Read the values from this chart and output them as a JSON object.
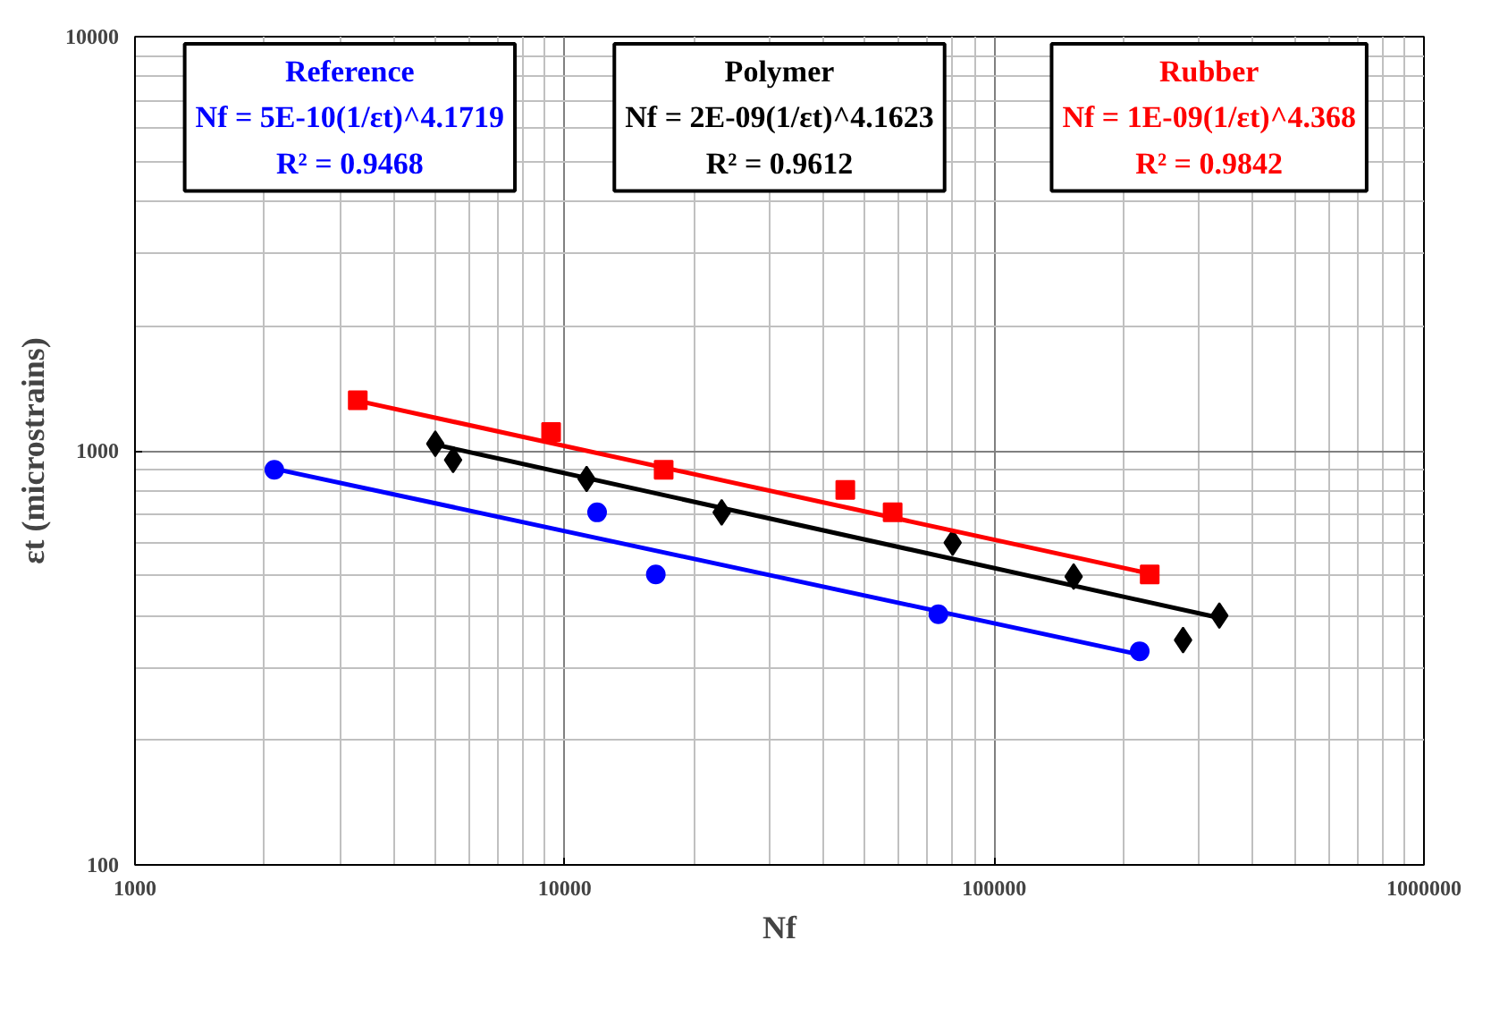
{
  "chart_data": {
    "type": "scatter",
    "xlabel": "Nf",
    "ylabel": "εt (microstrains)",
    "log": "xy",
    "grid": true,
    "xlim": [
      1000,
      1000000
    ],
    "xticks": [
      1000,
      10000,
      100000,
      1000000
    ],
    "ylim": [
      100,
      10000
    ],
    "yticks": [
      100,
      1000,
      10000
    ],
    "series": [
      {
        "name": "Reference",
        "color": "#0000ff",
        "marker": "circle",
        "x": [
          2110,
          11900,
          16300,
          74100,
          218000
        ],
        "values": [
          900,
          710,
          503,
          403,
          328
        ]
      },
      {
        "name": "Polymer",
        "color": "#000000",
        "marker": "diamond",
        "x": [
          5000,
          5500,
          11250,
          23200,
          80000,
          153000,
          275000,
          334000
        ],
        "values": [
          1040,
          950,
          855,
          710,
          600,
          497,
          349,
          400
        ]
      },
      {
        "name": "Rubber",
        "color": "#ff0000",
        "marker": "square",
        "x": [
          3300,
          9300,
          17000,
          45000,
          58000,
          230000
        ],
        "values": [
          1325,
          1110,
          900,
          804,
          710,
          503
        ]
      },
      {
        "type": "line",
        "color": "#0000ff",
        "x": [
          2110,
          218000
        ],
        "values": [
          905,
          322
        ]
      },
      {
        "type": "line",
        "color": "#000000",
        "x": [
          5000,
          334000
        ],
        "values": [
          1035,
          395
        ]
      },
      {
        "type": "line",
        "color": "#ff0000",
        "x": [
          3300,
          230000
        ],
        "values": [
          1320,
          505
        ]
      }
    ],
    "annotations": [
      "Nf = 5E-10(1/εt)^4.1719\nR² = 0.9468",
      "Nf = 2E-09(1/εt)^4.1623\nR² = 0.9612",
      "Nf = 1E-09(1/εt)^4.368\nR² = 0.9842"
    ]
  }
}
